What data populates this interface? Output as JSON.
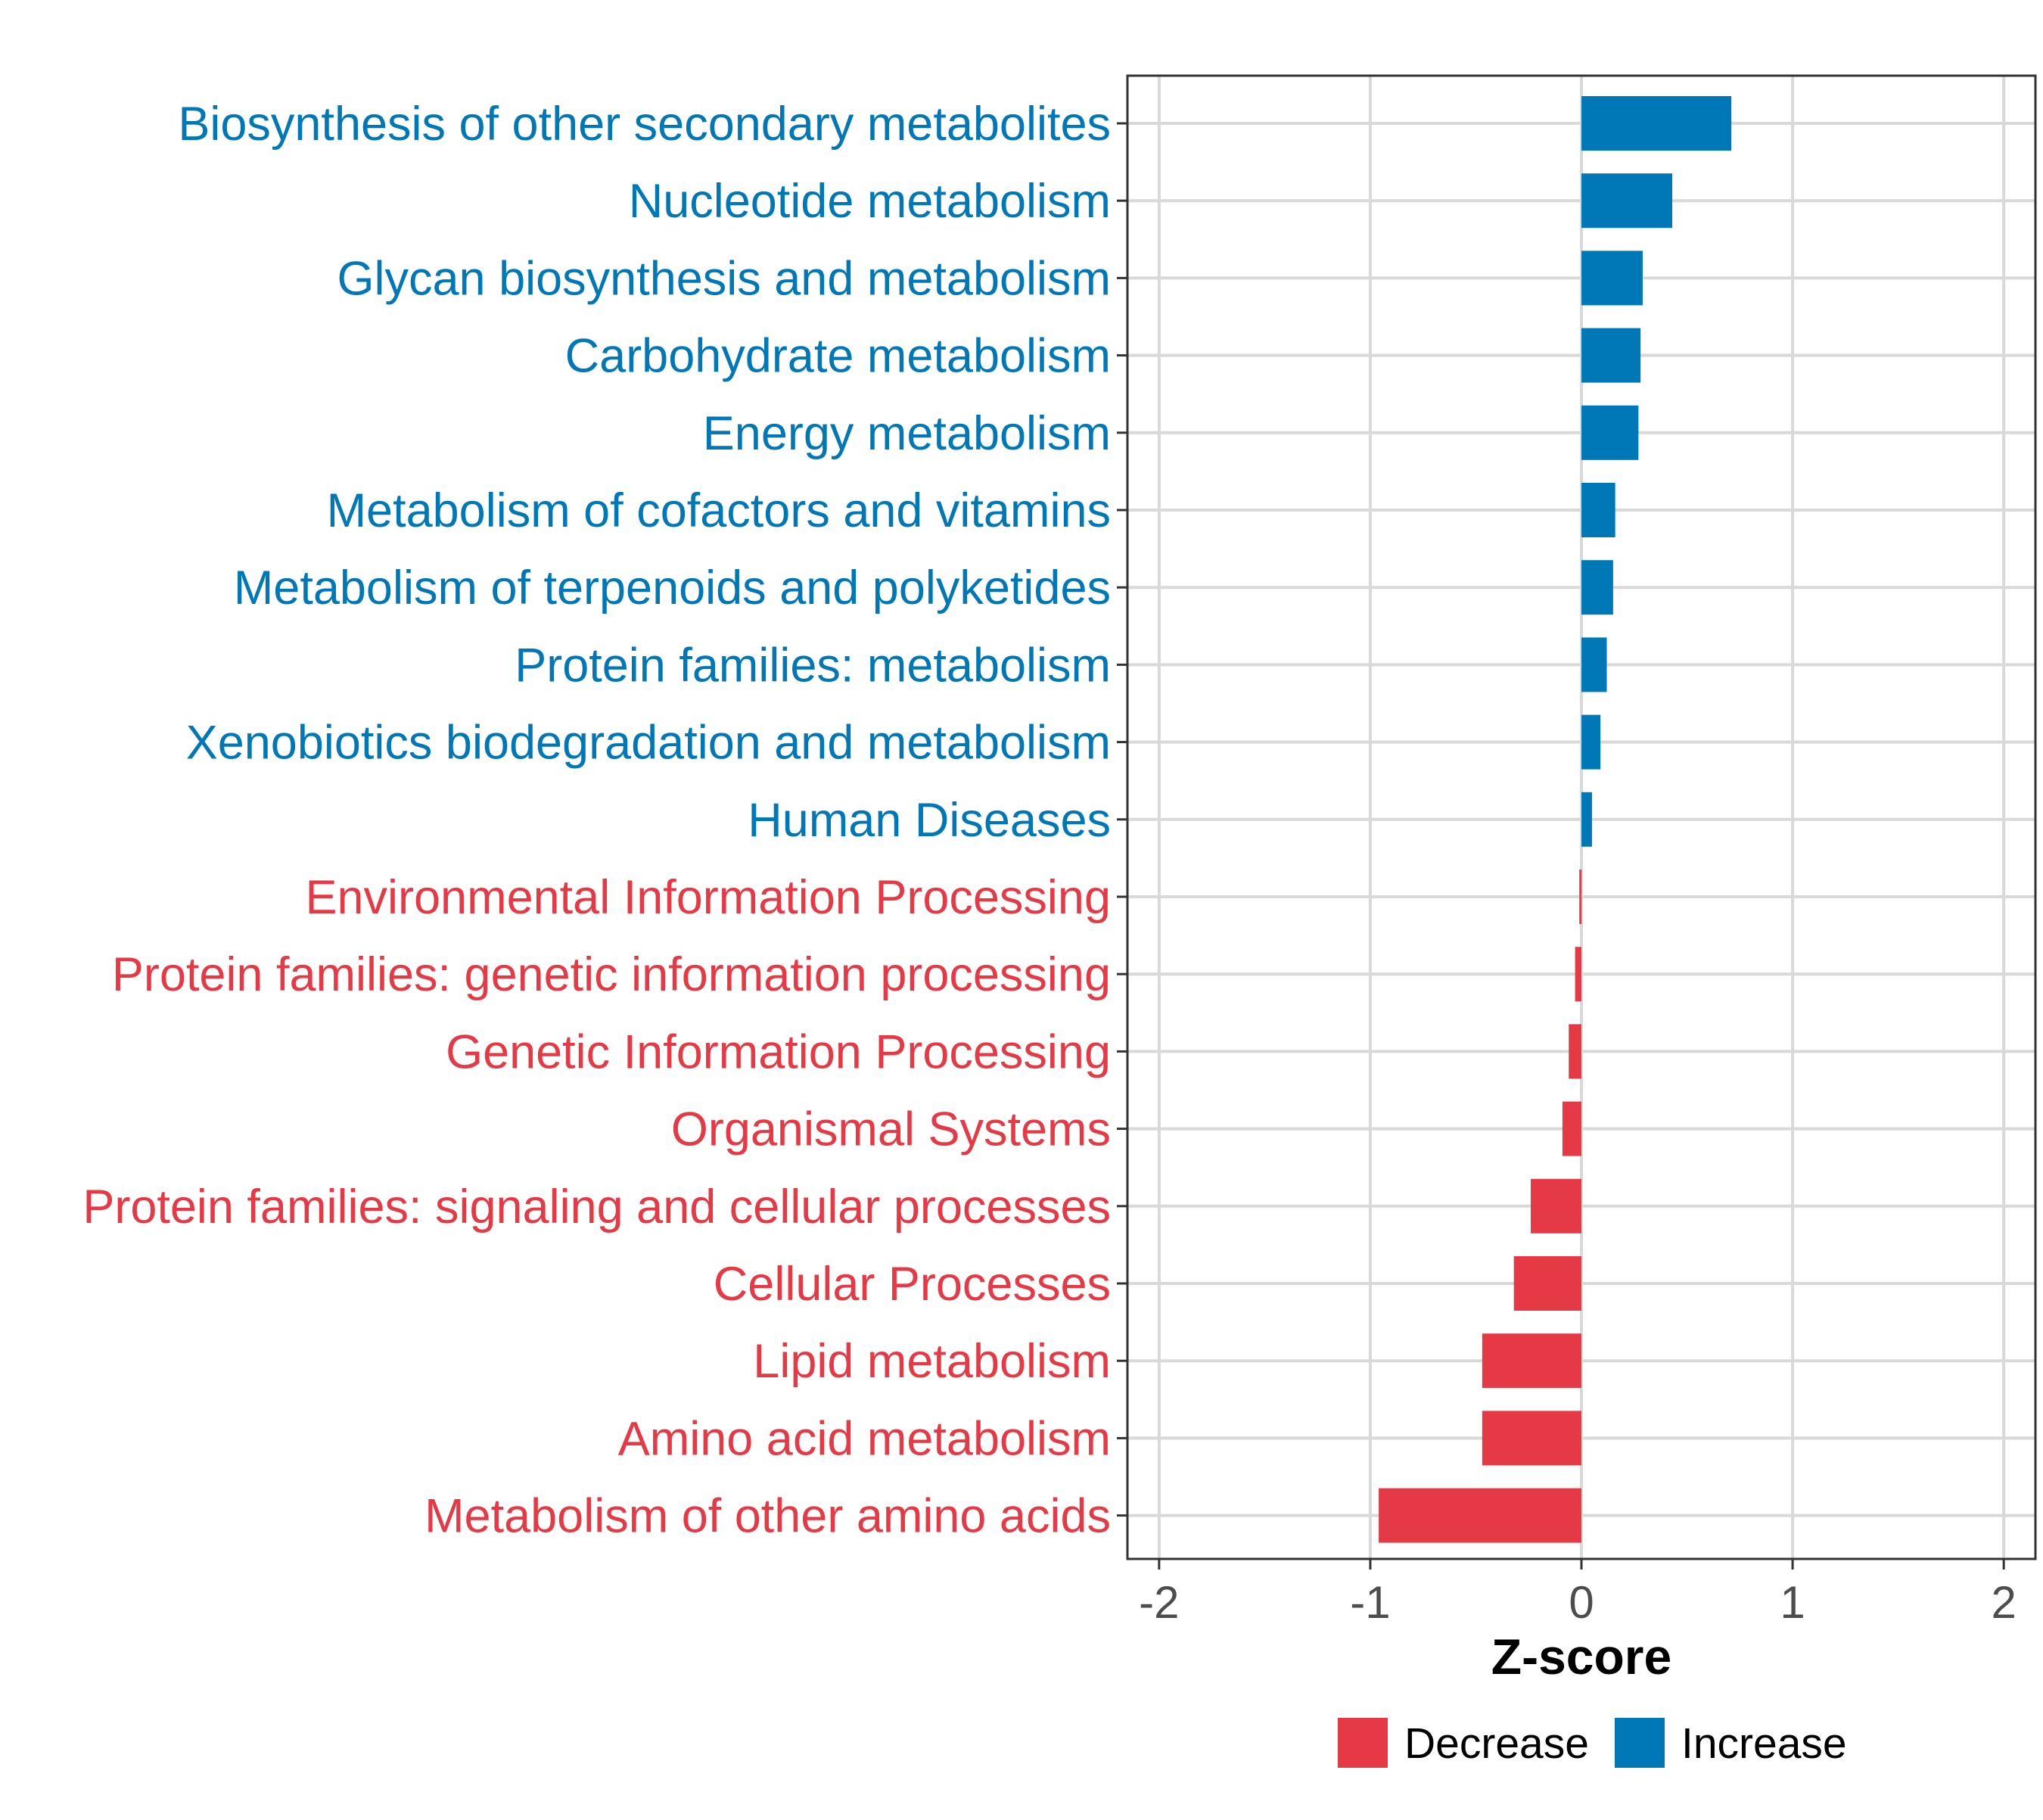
{
  "chart_data": {
    "type": "bar",
    "orientation": "horizontal",
    "title": "",
    "xlabel": "Z-score",
    "ylabel": "",
    "xlim": [
      -2.15,
      2.15
    ],
    "xticks": [
      -2,
      -1,
      0,
      1,
      2
    ],
    "xtick_labels": [
      "-2",
      "-1",
      "0",
      "1",
      "2"
    ],
    "grid": true,
    "categories": [
      "Biosynthesis of other secondary metabolites",
      "Nucleotide metabolism",
      "Glycan biosynthesis and metabolism",
      "Carbohydrate metabolism",
      "Energy metabolism",
      "Metabolism of cofactors and vitamins",
      "Metabolism of terpenoids and polyketides",
      "Protein families: metabolism",
      "Xenobiotics biodegradation and metabolism",
      "Human Diseases",
      "Environmental Information Processing",
      "Protein families: genetic information processing",
      "Genetic Information Processing",
      "Organismal Systems",
      "Protein families: signaling and cellular processes",
      "Cellular Processes",
      "Lipid metabolism",
      "Amino acid metabolism",
      "Metabolism of other amino acids"
    ],
    "values": [
      0.71,
      0.43,
      0.29,
      0.28,
      0.27,
      0.16,
      0.15,
      0.12,
      0.09,
      0.05,
      -0.01,
      -0.03,
      -0.06,
      -0.09,
      -0.24,
      -0.32,
      -0.47,
      -0.47,
      -0.96
    ],
    "legend": {
      "position": "bottom",
      "entries": [
        {
          "name": "Decrease",
          "color": "#E63946"
        },
        {
          "name": "Increase",
          "color": "#0077B6"
        }
      ]
    }
  }
}
